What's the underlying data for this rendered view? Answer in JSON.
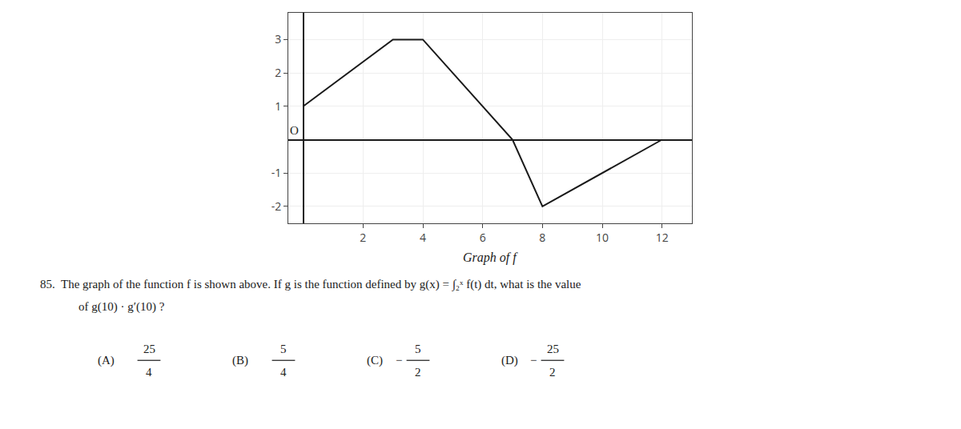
{
  "chart_data": {
    "type": "line",
    "x": [
      0,
      3,
      4,
      7,
      8,
      12
    ],
    "values": [
      1,
      3,
      3,
      0,
      -2,
      0
    ],
    "color": "#1a1a1a",
    "xlim": [
      -0.5,
      13
    ],
    "ylim": [
      -2.5,
      3.8
    ],
    "xticks": [
      2,
      4,
      6,
      8,
      10,
      12
    ],
    "yticks": [
      -2,
      -1,
      1,
      2,
      3
    ],
    "grid": true,
    "annotations": [
      "O",
      "Graph of f",
      "85.  The graph of the function f is shown above. If g is the function defined by g(x) = ∫₂ˣ f(t) dt, what is the value",
      "of g(10) · g′(10) ?"
    ],
    "answer_choices": [
      {
        "label": "(A)",
        "numerator": "25",
        "denominator": "4"
      },
      {
        "label": "(B)",
        "numerator": "5",
        "denominator": "4"
      },
      {
        "label": "(C)",
        "sign": "−",
        "numerator": "5",
        "denominator": "2"
      },
      {
        "label": "(D)",
        "sign": "−",
        "numerator": "25",
        "denominator": "2"
      }
    ]
  }
}
